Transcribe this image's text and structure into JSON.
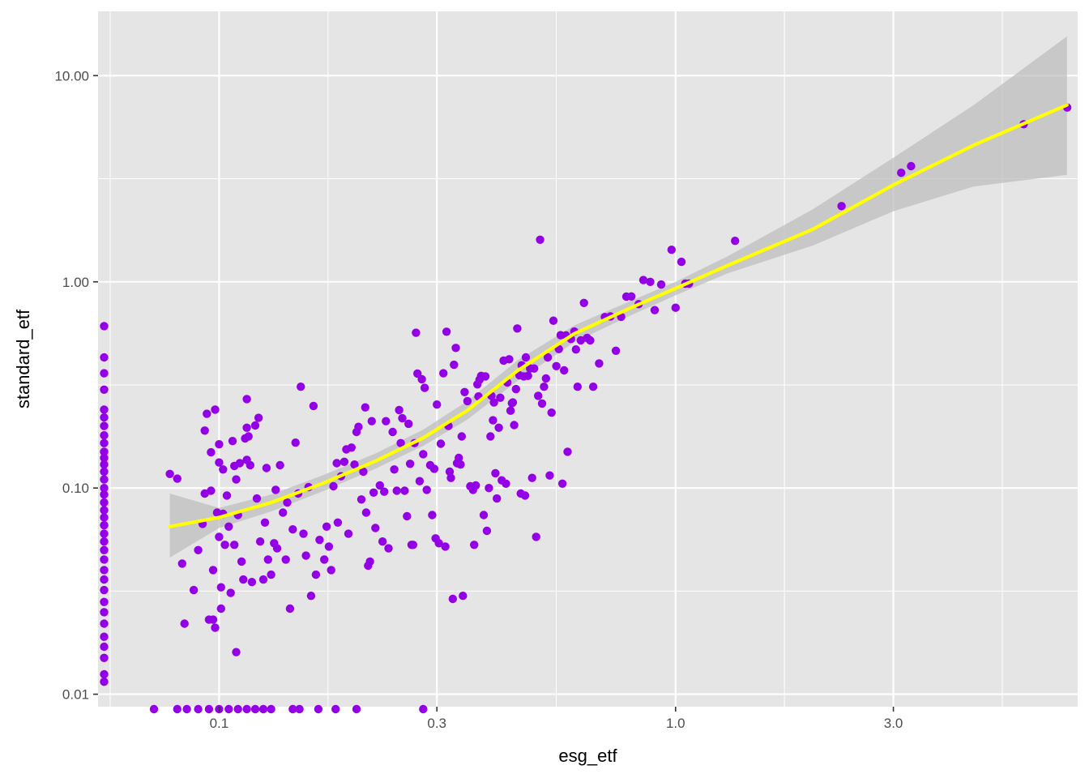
{
  "chart_data": {
    "type": "scatter",
    "title": "",
    "xlabel": "esg_etf",
    "ylabel": "standard_etf",
    "x_scale": "log10",
    "y_scale": "log10",
    "xlim": [
      0.0543,
      7.6
    ],
    "ylim": [
      0.0087,
      20.5
    ],
    "x_ticks": [
      {
        "value": 0.1,
        "label": "0.1"
      },
      {
        "value": 0.3,
        "label": "0.3"
      },
      {
        "value": 1.0,
        "label": "1.0"
      },
      {
        "value": 3.0,
        "label": "3.0"
      }
    ],
    "y_ticks": [
      {
        "value": 0.01,
        "label": "0.01"
      },
      {
        "value": 0.1,
        "label": "0.10"
      },
      {
        "value": 1.0,
        "label": "1.00"
      },
      {
        "value": 10.0,
        "label": "10.00"
      }
    ],
    "grid": true,
    "colors": {
      "panel": "#E5E5E5",
      "grid": "#FFFFFF",
      "points": "#9400E6",
      "smooth_line": "#FFFF00",
      "ribbon": "#BDBDBD"
    },
    "series": [
      {
        "type": "points",
        "points": [
          [
            0.056,
            0.61
          ],
          [
            0.056,
            0.43
          ],
          [
            0.056,
            0.36
          ],
          [
            0.056,
            0.3
          ],
          [
            0.056,
            0.24
          ],
          [
            0.056,
            0.22
          ],
          [
            0.056,
            0.2
          ],
          [
            0.056,
            0.18
          ],
          [
            0.056,
            0.165
          ],
          [
            0.056,
            0.15
          ],
          [
            0.056,
            0.14
          ],
          [
            0.056,
            0.13
          ],
          [
            0.056,
            0.12
          ],
          [
            0.056,
            0.11
          ],
          [
            0.056,
            0.1
          ],
          [
            0.056,
            0.093
          ],
          [
            0.056,
            0.085
          ],
          [
            0.056,
            0.078
          ],
          [
            0.056,
            0.072
          ],
          [
            0.056,
            0.066
          ],
          [
            0.056,
            0.06
          ],
          [
            0.056,
            0.055
          ],
          [
            0.056,
            0.05
          ],
          [
            0.056,
            0.045
          ],
          [
            0.056,
            0.04
          ],
          [
            0.056,
            0.036
          ],
          [
            0.056,
            0.032
          ],
          [
            0.056,
            0.028
          ],
          [
            0.056,
            0.025
          ],
          [
            0.056,
            0.022
          ],
          [
            0.056,
            0.019
          ],
          [
            0.056,
            0.017
          ],
          [
            0.056,
            0.015
          ],
          [
            0.056,
            0.0125
          ],
          [
            0.056,
            0.0115
          ],
          [
            0.072,
            0.0079
          ],
          [
            0.081,
            0.0079
          ],
          [
            0.085,
            0.0079
          ],
          [
            0.09,
            0.0079
          ],
          [
            0.095,
            0.0079
          ],
          [
            0.1,
            0.0079
          ],
          [
            0.105,
            0.0079
          ],
          [
            0.11,
            0.0079
          ],
          [
            0.115,
            0.0079
          ],
          [
            0.12,
            0.0079
          ],
          [
            0.125,
            0.0079
          ],
          [
            0.13,
            0.0079
          ],
          [
            0.145,
            0.0079
          ],
          [
            0.15,
            0.0079
          ],
          [
            0.165,
            0.0079
          ],
          [
            0.18,
            0.0079
          ],
          [
            0.2,
            0.0079
          ],
          [
            0.28,
            0.0079
          ],
          [
            0.078,
            0.117
          ],
          [
            0.081,
            0.111
          ],
          [
            0.083,
            0.043
          ],
          [
            0.084,
            0.022
          ],
          [
            0.088,
            0.032
          ],
          [
            0.09,
            0.05
          ],
          [
            0.092,
            0.067
          ],
          [
            0.093,
            0.094
          ],
          [
            0.093,
            0.19
          ],
          [
            0.094,
            0.229
          ],
          [
            0.095,
            0.023
          ],
          [
            0.096,
            0.149
          ],
          [
            0.096,
            0.097
          ],
          [
            0.097,
            0.023
          ],
          [
            0.097,
            0.04
          ],
          [
            0.098,
            0.021
          ],
          [
            0.098,
            0.24
          ],
          [
            0.099,
            0.076
          ],
          [
            0.1,
            0.133
          ],
          [
            0.1,
            0.163
          ],
          [
            0.1,
            0.058
          ],
          [
            0.101,
            0.026
          ],
          [
            0.101,
            0.033
          ],
          [
            0.102,
            0.123
          ],
          [
            0.102,
            0.075
          ],
          [
            0.103,
            0.053
          ],
          [
            0.104,
            0.092
          ],
          [
            0.105,
            0.065
          ],
          [
            0.106,
            0.031
          ],
          [
            0.107,
            0.169
          ],
          [
            0.108,
            0.128
          ],
          [
            0.108,
            0.053
          ],
          [
            0.109,
            0.016
          ],
          [
            0.109,
            0.11
          ],
          [
            0.11,
            0.074
          ],
          [
            0.111,
            0.132
          ],
          [
            0.112,
            0.044
          ],
          [
            0.113,
            0.036
          ],
          [
            0.114,
            0.174
          ],
          [
            0.115,
            0.27
          ],
          [
            0.115,
            0.137
          ],
          [
            0.115,
            0.196
          ],
          [
            0.116,
            0.178
          ],
          [
            0.117,
            0.129
          ],
          [
            0.118,
            0.035
          ],
          [
            0.12,
            0.201
          ],
          [
            0.121,
            0.089
          ],
          [
            0.122,
            0.219
          ],
          [
            0.123,
            0.055
          ],
          [
            0.125,
            0.036
          ],
          [
            0.126,
            0.068
          ],
          [
            0.127,
            0.125
          ],
          [
            0.128,
            0.045
          ],
          [
            0.13,
            0.038
          ],
          [
            0.132,
            0.054
          ],
          [
            0.133,
            0.098
          ],
          [
            0.134,
            0.051
          ],
          [
            0.136,
            0.129
          ],
          [
            0.138,
            0.076
          ],
          [
            0.14,
            0.045
          ],
          [
            0.141,
            0.085
          ],
          [
            0.143,
            0.026
          ],
          [
            0.145,
            0.063
          ],
          [
            0.147,
            0.166
          ],
          [
            0.149,
            0.094
          ],
          [
            0.151,
            0.31
          ],
          [
            0.153,
            0.06
          ],
          [
            0.155,
            0.047
          ],
          [
            0.157,
            0.101
          ],
          [
            0.159,
            0.03
          ],
          [
            0.161,
            0.25
          ],
          [
            0.163,
            0.038
          ],
          [
            0.166,
            0.056
          ],
          [
            0.17,
            0.045
          ],
          [
            0.172,
            0.065
          ],
          [
            0.174,
            0.052
          ],
          [
            0.176,
            0.04
          ],
          [
            0.178,
            0.102
          ],
          [
            0.181,
            0.132
          ],
          [
            0.182,
            0.068
          ],
          [
            0.185,
            0.114
          ],
          [
            0.188,
            0.134
          ],
          [
            0.19,
            0.154
          ],
          [
            0.192,
            0.06
          ],
          [
            0.195,
            0.157
          ],
          [
            0.198,
            0.13
          ],
          [
            0.2,
            0.187
          ],
          [
            0.202,
            0.198
          ],
          [
            0.205,
            0.088
          ],
          [
            0.207,
            0.12
          ],
          [
            0.209,
            0.246
          ],
          [
            0.21,
            0.076
          ],
          [
            0.212,
            0.042
          ],
          [
            0.214,
            0.044
          ],
          [
            0.216,
            0.211
          ],
          [
            0.218,
            0.095
          ],
          [
            0.22,
            0.064
          ],
          [
            0.225,
            0.103
          ],
          [
            0.228,
            0.055
          ],
          [
            0.23,
            0.096
          ],
          [
            0.232,
            0.211
          ],
          [
            0.235,
            0.051
          ],
          [
            0.24,
            0.187
          ],
          [
            0.242,
            0.123
          ],
          [
            0.245,
            0.097
          ],
          [
            0.248,
            0.239
          ],
          [
            0.25,
            0.165
          ],
          [
            0.252,
            0.218
          ],
          [
            0.255,
            0.097
          ],
          [
            0.258,
            0.073
          ],
          [
            0.26,
            0.205
          ],
          [
            0.262,
            0.131
          ],
          [
            0.264,
            0.053
          ],
          [
            0.266,
            0.053
          ],
          [
            0.268,
            0.165
          ],
          [
            0.27,
            0.566
          ],
          [
            0.272,
            0.359
          ],
          [
            0.275,
            0.108
          ],
          [
            0.278,
            0.337
          ],
          [
            0.28,
            0.146
          ],
          [
            0.282,
            0.306
          ],
          [
            0.285,
            0.098
          ],
          [
            0.29,
            0.129
          ],
          [
            0.293,
            0.074
          ],
          [
            0.296,
            0.124
          ],
          [
            0.298,
            0.057
          ],
          [
            0.3,
            0.254
          ],
          [
            0.303,
            0.054
          ],
          [
            0.306,
            0.164
          ],
          [
            0.31,
            0.36
          ],
          [
            0.313,
            0.052
          ],
          [
            0.315,
            0.573
          ],
          [
            0.318,
            0.2
          ],
          [
            0.32,
            0.12
          ],
          [
            0.322,
            0.112
          ],
          [
            0.325,
            0.029
          ],
          [
            0.327,
            0.396
          ],
          [
            0.33,
            0.478
          ],
          [
            0.332,
            0.132
          ],
          [
            0.335,
            0.14
          ],
          [
            0.338,
            0.13
          ],
          [
            0.34,
            0.178
          ],
          [
            0.342,
            0.03
          ],
          [
            0.345,
            0.292
          ],
          [
            0.35,
            0.264
          ],
          [
            0.355,
            0.102
          ],
          [
            0.36,
            0.098
          ],
          [
            0.362,
            0.053
          ],
          [
            0.365,
            0.103
          ],
          [
            0.368,
            0.318
          ],
          [
            0.37,
            0.278
          ],
          [
            0.372,
            0.335
          ],
          [
            0.375,
            0.35
          ],
          [
            0.38,
            0.074
          ],
          [
            0.383,
            0.348
          ],
          [
            0.386,
            0.062
          ],
          [
            0.39,
            0.1
          ],
          [
            0.393,
            0.178
          ],
          [
            0.395,
            0.28
          ],
          [
            0.398,
            0.213
          ],
          [
            0.4,
            0.26
          ],
          [
            0.403,
            0.118
          ],
          [
            0.406,
            0.089
          ],
          [
            0.41,
            0.196
          ],
          [
            0.413,
            0.274
          ],
          [
            0.416,
            0.109
          ],
          [
            0.42,
            0.415
          ],
          [
            0.425,
            0.105
          ],
          [
            0.428,
            0.325
          ],
          [
            0.432,
            0.421
          ],
          [
            0.435,
            0.237
          ],
          [
            0.438,
            0.258
          ],
          [
            0.44,
            0.26
          ],
          [
            0.443,
            0.202
          ],
          [
            0.447,
            0.302
          ],
          [
            0.45,
            0.594
          ],
          [
            0.455,
            0.352
          ],
          [
            0.458,
            0.094
          ],
          [
            0.46,
            0.394
          ],
          [
            0.465,
            0.348
          ],
          [
            0.468,
            0.092
          ],
          [
            0.47,
            0.43
          ],
          [
            0.475,
            0.35
          ],
          [
            0.48,
            0.38
          ],
          [
            0.485,
            0.112
          ],
          [
            0.49,
            0.38
          ],
          [
            0.495,
            0.058
          ],
          [
            0.5,
            0.28
          ],
          [
            0.505,
            1.6
          ],
          [
            0.51,
            0.257
          ],
          [
            0.515,
            0.31
          ],
          [
            0.52,
            0.34
          ],
          [
            0.525,
            0.43
          ],
          [
            0.53,
            0.115
          ],
          [
            0.535,
            0.232
          ],
          [
            0.54,
            0.648
          ],
          [
            0.548,
            0.39
          ],
          [
            0.555,
            0.472
          ],
          [
            0.56,
            0.551
          ],
          [
            0.565,
            0.105
          ],
          [
            0.57,
            0.372
          ],
          [
            0.575,
            0.55
          ],
          [
            0.58,
            0.15
          ],
          [
            0.59,
            0.528
          ],
          [
            0.6,
            0.574
          ],
          [
            0.605,
            0.47
          ],
          [
            0.61,
            0.31
          ],
          [
            0.62,
            0.52
          ],
          [
            0.63,
            0.79
          ],
          [
            0.64,
            0.535
          ],
          [
            0.65,
            0.52
          ],
          [
            0.66,
            0.31
          ],
          [
            0.68,
            0.402
          ],
          [
            0.7,
            0.675
          ],
          [
            0.72,
            0.68
          ],
          [
            0.74,
            0.463
          ],
          [
            0.76,
            0.677
          ],
          [
            0.78,
            0.848
          ],
          [
            0.8,
            0.849
          ],
          [
            0.83,
            0.779
          ],
          [
            0.85,
            1.02
          ],
          [
            0.88,
            1.0
          ],
          [
            0.9,
            0.729
          ],
          [
            0.93,
            0.97
          ],
          [
            0.98,
            1.43
          ],
          [
            1.0,
            0.749
          ],
          [
            1.03,
            1.25
          ],
          [
            1.05,
            0.98
          ],
          [
            1.07,
            0.98
          ],
          [
            1.35,
            1.58
          ],
          [
            2.31,
            2.33
          ],
          [
            3.12,
            3.38
          ],
          [
            3.28,
            3.64
          ],
          [
            5.79,
            5.81
          ],
          [
            7.21,
            7.0
          ]
        ]
      },
      {
        "type": "smooth",
        "x": [
          0.078,
          0.1,
          0.13,
          0.17,
          0.22,
          0.28,
          0.35,
          0.45,
          0.6,
          0.8,
          1.0,
          1.3,
          2.0,
          3.0,
          4.5,
          7.2
        ],
        "y": [
          0.065,
          0.072,
          0.085,
          0.106,
          0.135,
          0.175,
          0.238,
          0.37,
          0.56,
          0.75,
          0.93,
          1.2,
          1.8,
          2.95,
          4.6,
          7.2
        ],
        "lower": [
          0.046,
          0.064,
          0.077,
          0.097,
          0.124,
          0.16,
          0.215,
          0.33,
          0.51,
          0.69,
          0.86,
          1.1,
          1.5,
          2.2,
          2.9,
          3.3
        ],
        "upper": [
          0.094,
          0.08,
          0.093,
          0.116,
          0.147,
          0.192,
          0.264,
          0.415,
          0.615,
          0.81,
          1.0,
          1.33,
          2.25,
          4.0,
          7.2,
          15.5
        ]
      }
    ]
  }
}
